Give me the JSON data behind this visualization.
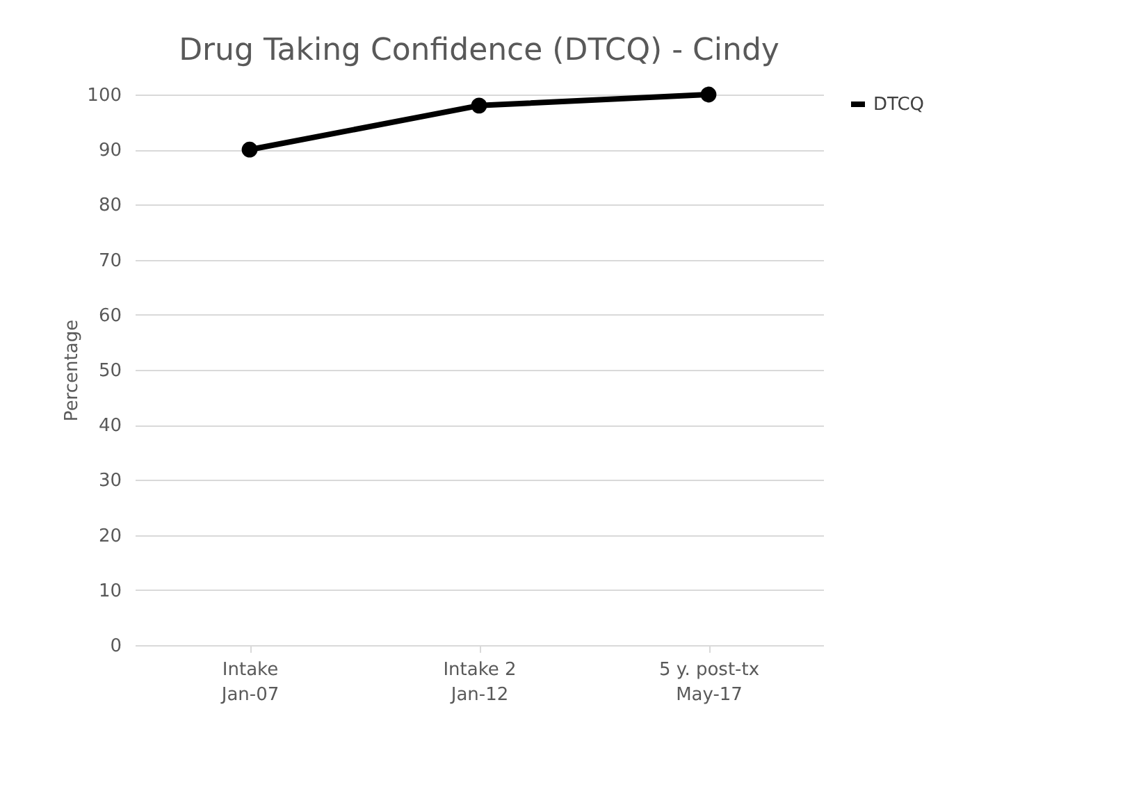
{
  "chart_data": {
    "type": "line",
    "title": "Drug Taking Confidence (DTCQ) - Cindy",
    "ylabel": "Percentage",
    "categories": [
      "Intake\nJan-07",
      "Intake 2\nJan-12",
      "5 y. post-tx\nMay-17"
    ],
    "series": [
      {
        "name": "DTCQ",
        "color": "#000000",
        "values": [
          90,
          98,
          100
        ]
      }
    ],
    "ylim": [
      0,
      100
    ],
    "yticks": [
      0,
      10,
      20,
      30,
      40,
      50,
      60,
      70,
      80,
      90,
      100
    ],
    "grid": "y",
    "legend": "right",
    "marker": "circle",
    "line_style": "solid"
  }
}
